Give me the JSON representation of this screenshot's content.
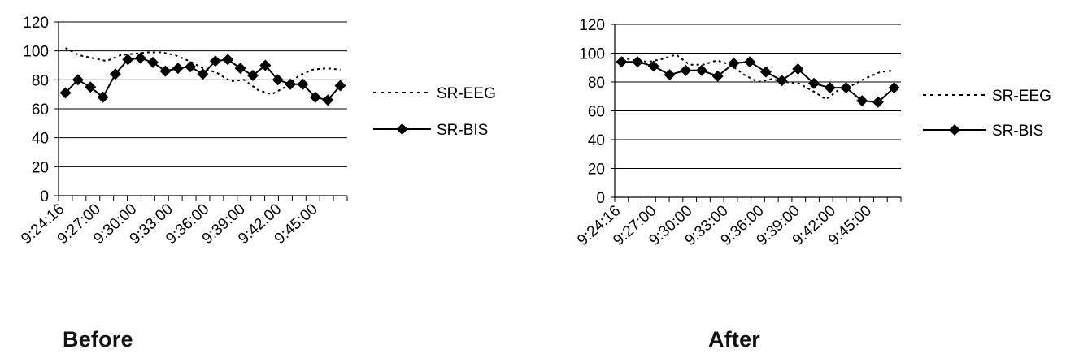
{
  "chart_data": [
    {
      "type": "line",
      "caption": "Before",
      "ylim": [
        0,
        120
      ],
      "yticks": [
        "0",
        "20",
        "40",
        "60",
        "80",
        "100",
        "120"
      ],
      "x_tick_labels": [
        "9:24:16",
        "9:27:00",
        "9:30:00",
        "9:33:00",
        "9:36:00",
        "9:39:00",
        "9:42:00",
        "9:45:00"
      ],
      "n_points": 21,
      "grid": "horizontal",
      "legend_position": "right",
      "series": [
        {
          "name": "SR-EEG",
          "style": "dotted",
          "values": [
            102,
            97,
            95,
            93,
            97,
            98,
            99,
            99,
            97,
            93,
            88,
            85,
            79,
            80,
            73,
            70,
            75,
            83,
            87,
            88,
            87
          ]
        },
        {
          "name": "SR-BIS",
          "style": "solid-diamond",
          "values": [
            71,
            80,
            75,
            68,
            84,
            94,
            95,
            92,
            86,
            88,
            89,
            84,
            93,
            94,
            88,
            83,
            90,
            80,
            77,
            77,
            68,
            66,
            76
          ]
        }
      ]
    },
    {
      "type": "line",
      "caption": "After",
      "ylim": [
        0,
        120
      ],
      "yticks": [
        "0",
        "20",
        "40",
        "60",
        "80",
        "100",
        "120"
      ],
      "x_tick_labels": [
        "9:24:16",
        "9:27:00",
        "9:30:00",
        "9:33:00",
        "9:36:00",
        "9:39:00",
        "9:42:00",
        "9:45:00"
      ],
      "n_points": 21,
      "grid": "horizontal",
      "legend_position": "right",
      "series": [
        {
          "name": "SR-EEG",
          "style": "dotted",
          "values": [
            97,
            95,
            94,
            96,
            99,
            92,
            92,
            95,
            92,
            85,
            80,
            82,
            80,
            79,
            74,
            68,
            75,
            78,
            83,
            87,
            88
          ]
        },
        {
          "name": "SR-BIS",
          "style": "solid-diamond",
          "values": [
            94,
            94,
            91,
            85,
            88,
            88,
            84,
            93,
            94,
            87,
            81,
            89,
            79,
            76,
            76,
            67,
            66,
            76
          ]
        }
      ]
    }
  ]
}
